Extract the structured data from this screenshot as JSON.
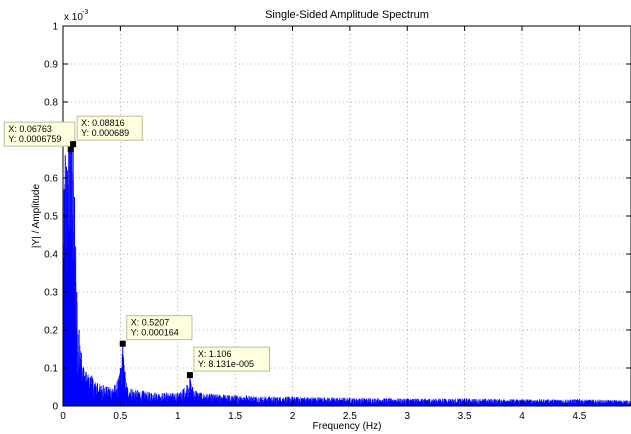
{
  "chart_data": {
    "type": "line",
    "title": "Single-Sided Amplitude Spectrum",
    "xlabel": "Frequency (Hz)",
    "ylabel": "|Y| / Amplitude",
    "y_exponent_base": "x 10",
    "y_exponent_power": "-3",
    "xlim": [
      0,
      4.95
    ],
    "ylim": [
      0,
      1
    ],
    "x_ticks": [
      0,
      0.5,
      1,
      1.5,
      2,
      2.5,
      3,
      3.5,
      4,
      4.5
    ],
    "x_tick_labels": [
      "0",
      "0.5",
      "1",
      "1.5",
      "2",
      "2.5",
      "3",
      "3.5",
      "4",
      "4.5"
    ],
    "y_ticks": [
      0,
      0.1,
      0.2,
      0.3,
      0.4,
      0.5,
      0.6,
      0.7,
      0.8,
      0.9,
      1
    ],
    "y_tick_labels": [
      "0",
      "0.1",
      "0.2",
      "0.3",
      "0.4",
      "0.5",
      "0.6",
      "0.7",
      "0.8",
      "0.9",
      "1"
    ],
    "grid": true,
    "series_color": "#0000ff",
    "series": [
      {
        "x": [
          0.0,
          0.01,
          0.02,
          0.03,
          0.04,
          0.05,
          0.06,
          0.0676,
          0.075,
          0.0882,
          0.1,
          0.11,
          0.12,
          0.14,
          0.16,
          0.18,
          0.2,
          0.25,
          0.3,
          0.35,
          0.4,
          0.45,
          0.48,
          0.5,
          0.5207,
          0.54,
          0.56,
          0.6,
          0.7,
          0.8,
          0.9,
          1.0,
          1.05,
          1.08,
          1.106,
          1.13,
          1.16,
          1.2,
          1.4,
          1.6,
          1.8,
          2.0,
          2.5,
          3.0,
          3.5,
          4.0,
          4.5,
          4.95
        ],
        "y": [
          0.05,
          0.57,
          0.66,
          0.63,
          0.62,
          0.68,
          0.72,
          0.6759,
          0.7,
          0.689,
          0.55,
          0.42,
          0.3,
          0.2,
          0.14,
          0.1,
          0.09,
          0.08,
          0.06,
          0.055,
          0.05,
          0.055,
          0.07,
          0.1,
          0.164,
          0.09,
          0.05,
          0.045,
          0.04,
          0.035,
          0.035,
          0.035,
          0.045,
          0.055,
          0.0813,
          0.05,
          0.04,
          0.035,
          0.03,
          0.028,
          0.025,
          0.025,
          0.022,
          0.02,
          0.02,
          0.018,
          0.018,
          0.015
        ]
      }
    ],
    "annotations": [
      {
        "x": 0.06763,
        "y": 0.6759,
        "line1": "X: 0.06763",
        "line2": "Y: 0.0006759",
        "side": "left"
      },
      {
        "x": 0.08816,
        "y": 0.689,
        "line1": "X: 0.08816",
        "line2": "Y: 0.000689",
        "side": "right"
      },
      {
        "x": 0.5207,
        "y": 0.164,
        "line1": "X: 0.5207",
        "line2": "Y: 0.000164",
        "side": "right"
      },
      {
        "x": 1.106,
        "y": 0.08131,
        "line1": "X: 1.106",
        "line2": "Y: 8.131e-005",
        "side": "right"
      }
    ]
  }
}
